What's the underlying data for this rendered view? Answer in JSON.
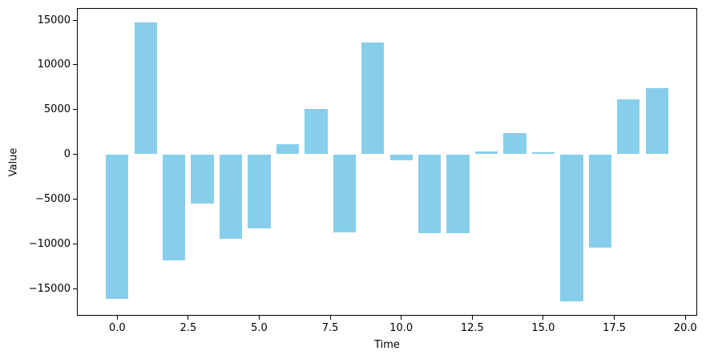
{
  "chart_data": {
    "type": "bar",
    "title": "",
    "xlabel": "Time",
    "ylabel": "Value",
    "x": [
      0,
      1,
      2,
      3,
      4,
      5,
      6,
      7,
      8,
      9,
      10,
      11,
      12,
      13,
      14,
      15,
      16,
      17,
      18,
      19
    ],
    "values": [
      -16200,
      14700,
      -11900,
      -5500,
      -9400,
      -8300,
      1100,
      5100,
      -8700,
      12500,
      -650,
      -8800,
      -8800,
      300,
      2400,
      250,
      -16400,
      -10400,
      6100,
      7400
    ],
    "bar_color": "#87CEEB",
    "bar_width": 0.8,
    "xlim": [
      -1.39,
      20.39
    ],
    "ylim": [
      -17955,
      16255
    ],
    "x_ticks": [
      0.0,
      2.5,
      5.0,
      7.5,
      10.0,
      12.5,
      15.0,
      17.5,
      20.0
    ],
    "x_tick_labels": [
      "0.0",
      "2.5",
      "5.0",
      "7.5",
      "10.0",
      "12.5",
      "15.0",
      "17.5",
      "20.0"
    ],
    "y_ticks": [
      15000,
      10000,
      5000,
      0,
      -5000,
      -10000,
      -15000
    ],
    "y_tick_labels": [
      "15000",
      "10000",
      "5000",
      "0",
      "−5000",
      "−10000",
      "−15000"
    ],
    "grid": false,
    "legend": null
  }
}
